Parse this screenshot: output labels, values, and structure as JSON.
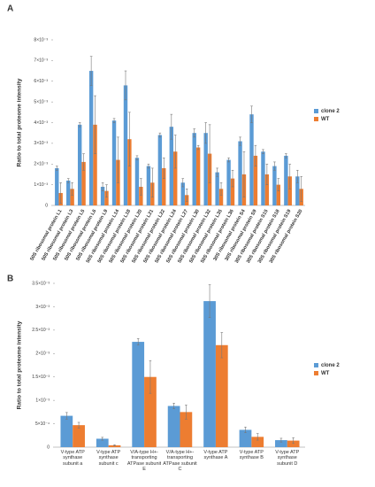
{
  "chart_data": [
    {
      "type": "bar",
      "panel_label": "A",
      "ylabel": "Ratio to total proteome intensity",
      "categories": [
        "50S ribosomal protein L1",
        "50S ribosomal protein L3",
        "50S ribosomal protein L5",
        "50S ribosomal protein L6",
        "50S ribosomal protein L9",
        "50S ribosomal protein L14",
        "50S ribosomal protein L18",
        "50S ribosomal protein L20",
        "50S ribosomal protein L21",
        "50S ribosomal protein L22",
        "50S ribosomal protein L24",
        "50S ribosomal protein L27",
        "50S ribosomal protein L30",
        "50S ribosomal protein L32",
        "50S ribosomal protein L35",
        "50S ribosomal protein L36",
        "30S ribosomal protein S4",
        "30S ribosomal protein S9",
        "30S ribosomal protein S15",
        "30S ribosomal protein S18",
        "30S ribosomal protein S19",
        "30S ribosomal protein S20"
      ],
      "series": [
        {
          "name": "clone 2",
          "color": "#5b9bd5",
          "values": [
            0.0018,
            0.0012,
            0.0039,
            0.0065,
            0.0009,
            0.0041,
            0.0058,
            0.0023,
            0.0019,
            0.0034,
            0.0038,
            0.0011,
            0.0035,
            0.0035,
            0.0016,
            0.0022,
            0.0031,
            0.0044,
            0.0026,
            0.0019,
            0.0024,
            0.0014
          ],
          "errors": [
            0.0001,
            0.0001,
            0.0001,
            0.0007,
            0.0002,
            0.0001,
            0.0007,
            0.0001,
            0.0001,
            0.0001,
            0.0006,
            0.0002,
            0.0002,
            0.0005,
            0.0002,
            0.0001,
            0.0002,
            0.0004,
            0.0001,
            0.0002,
            0.0001,
            0.0003
          ]
        },
        {
          "name": "WT",
          "color": "#ed7d31",
          "values": [
            0.0006,
            0.0008,
            0.0021,
            0.0039,
            0.0007,
            0.0022,
            0.0032,
            0.0009,
            0.0011,
            0.0018,
            0.0026,
            0.0005,
            0.0028,
            0.0025,
            0.0008,
            0.0013,
            0.0015,
            0.0024,
            0.0015,
            0.001,
            0.0014,
            0.0008
          ],
          "errors": [
            0.0005,
            0.0003,
            0.0004,
            0.0014,
            0.0003,
            0.0011,
            0.0013,
            0.0004,
            0.0007,
            0.0005,
            0.0008,
            0.0003,
            0.0001,
            0.0014,
            0.0003,
            0.0004,
            0.0011,
            0.0005,
            0.0005,
            0.0003,
            0.0006,
            0.0006
          ]
        }
      ],
      "ylim": [
        0,
        0.008
      ],
      "yticks": [
        0,
        {
          "value": 0.001,
          "label": "1×10⁻³"
        },
        {
          "value": 0.002,
          "label": "2×10⁻³"
        },
        {
          "value": 0.003,
          "label": "3×10⁻³"
        },
        {
          "value": 0.004,
          "label": "4×10⁻³"
        },
        {
          "value": 0.005,
          "label": "5×10⁻³"
        },
        {
          "value": 0.006,
          "label": "6×10⁻³"
        },
        {
          "value": 0.007,
          "label": "7×10⁻³"
        },
        {
          "value": 0.008,
          "label": "8×10⁻³"
        }
      ],
      "grid": false,
      "legend": "right"
    },
    {
      "type": "bar",
      "panel_label": "B",
      "ylabel": "Ratio to total proteome intensity",
      "categories": [
        "V-type ATP synthase subunit a",
        "V-type ATP synthase subunit c",
        "V/A-type H+-transporting ATPase subunit E",
        "V/A-type H+-transporting ATPase subunit C",
        "V-type ATP synthase A",
        "V-type ATP synthase B",
        "V-type ATP synthase subunit D"
      ],
      "series": [
        {
          "name": "clone 2",
          "color": "#5b9bd5",
          "values": [
            0.00067,
            0.00018,
            0.00225,
            0.00088,
            0.00312,
            0.00037,
            0.00015
          ],
          "errors": [
            7e-05,
            3e-05,
            7e-05,
            6e-05,
            0.00035,
            6e-05,
            4e-05
          ]
        },
        {
          "name": "WT",
          "color": "#ed7d31",
          "values": [
            0.00047,
            4e-05,
            0.0015,
            0.00075,
            0.00218,
            0.00022,
            0.00014
          ],
          "errors": [
            6e-05,
            1e-05,
            0.00035,
            0.00015,
            0.00027,
            7e-05,
            6e-05
          ]
        }
      ],
      "ylim": [
        0,
        0.0035
      ],
      "yticks": [
        0,
        {
          "value": 0.0005,
          "label": "5×10⁻⁴"
        },
        {
          "value": 0.001,
          "label": "1×10⁻³"
        },
        {
          "value": 0.0015,
          "label": "1.5×10⁻³"
        },
        {
          "value": 0.002,
          "label": "2×10⁻³"
        },
        {
          "value": 0.0025,
          "label": "2.5×10⁻³"
        },
        {
          "value": 0.003,
          "label": "3×10⁻³"
        },
        {
          "value": 0.0035,
          "label": "3.5×10⁻³"
        }
      ],
      "grid": false,
      "legend": "right"
    }
  ]
}
